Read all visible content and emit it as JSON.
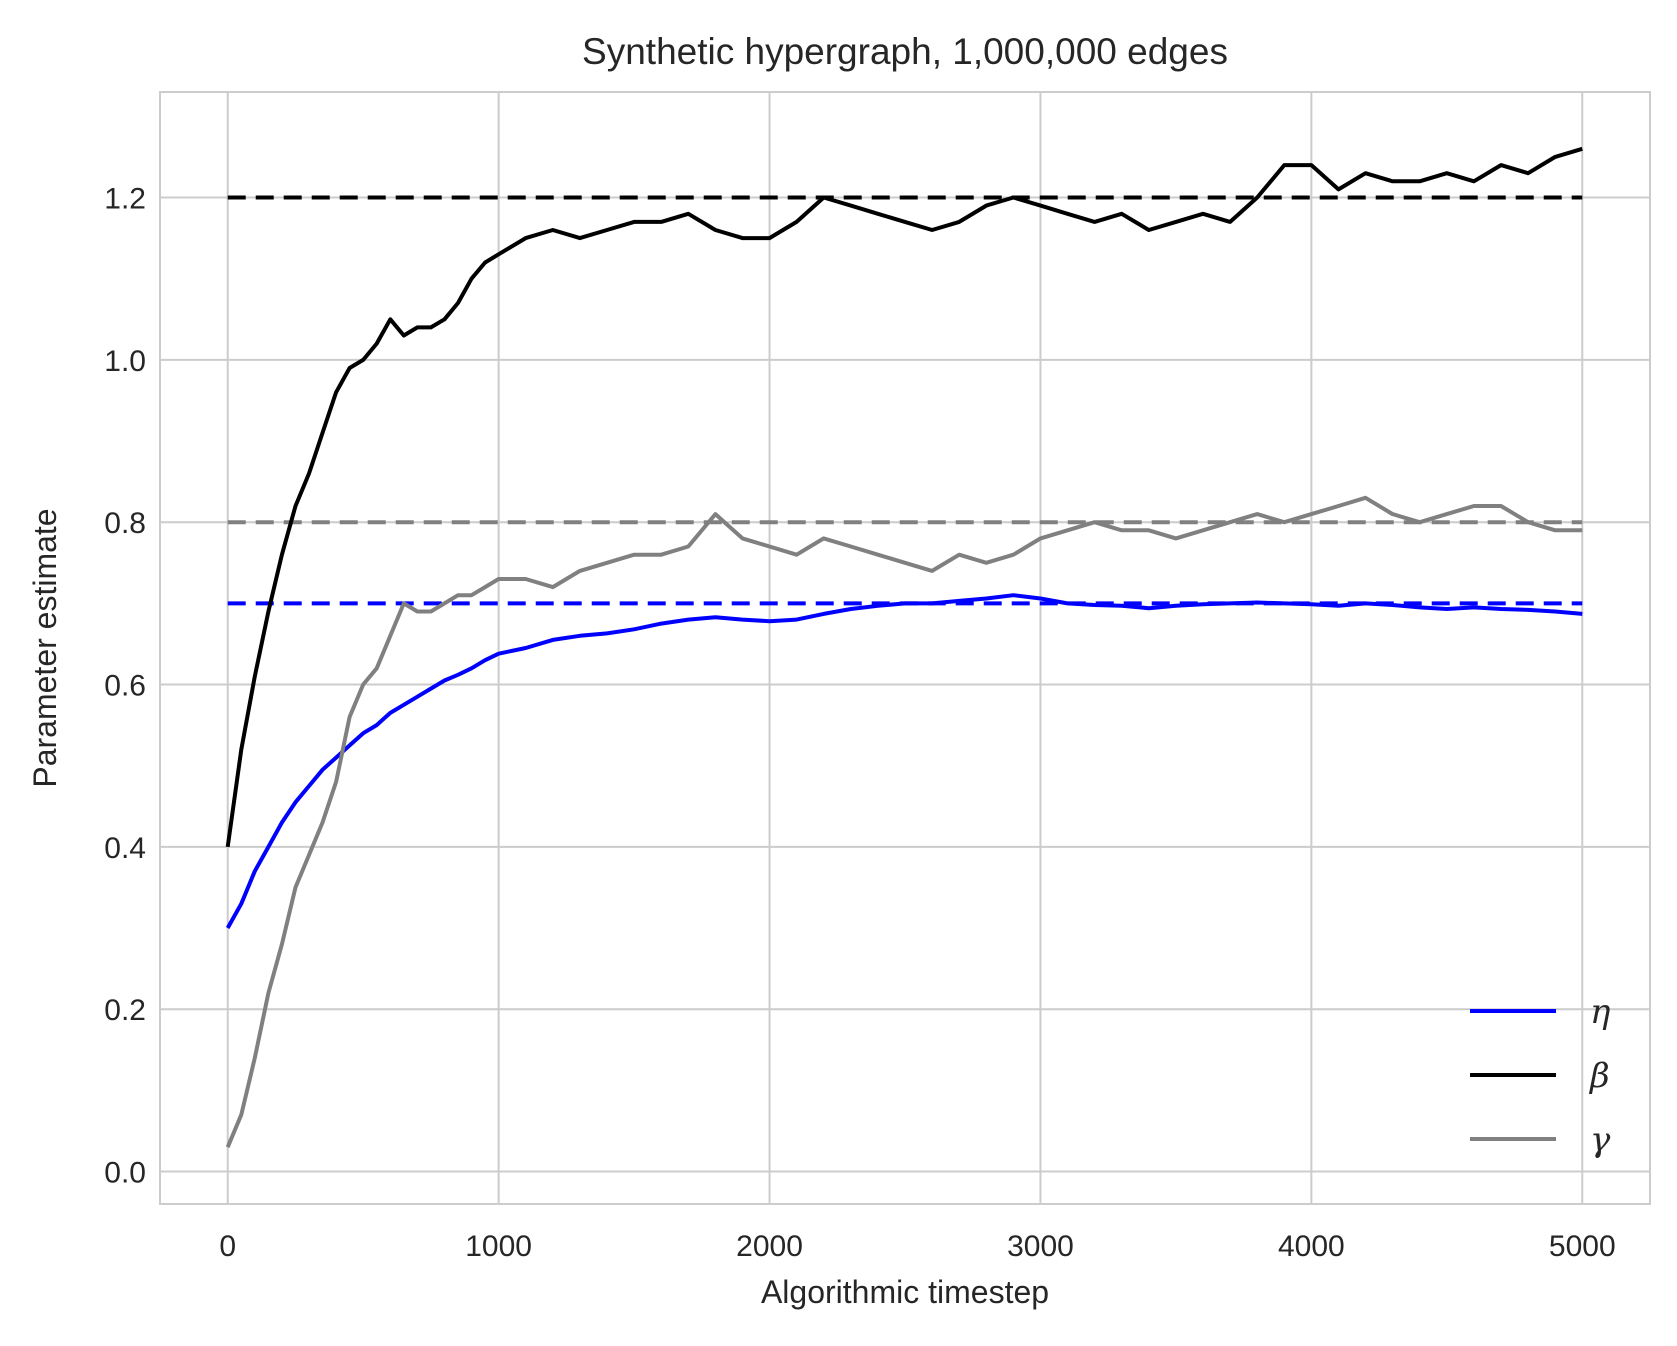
{
  "chart_data": {
    "type": "line",
    "title": "Synthetic hypergraph, 1,000,000 edges",
    "xlabel": "Algorithmic timestep",
    "ylabel": "Parameter estimate",
    "xlim": [
      -250,
      5250
    ],
    "ylim": [
      -0.04,
      1.33
    ],
    "xticks": [
      0,
      1000,
      2000,
      3000,
      4000,
      5000
    ],
    "xtick_labels": [
      "0",
      "1000",
      "2000",
      "3000",
      "4000",
      "5000"
    ],
    "yticks": [
      0.0,
      0.2,
      0.4,
      0.6,
      0.8,
      1.0,
      1.2
    ],
    "ytick_labels": [
      "0.0",
      "0.2",
      "0.4",
      "0.6",
      "0.8",
      "1.0",
      "1.2"
    ],
    "grid": true,
    "legend_position": "lower-right",
    "series": [
      {
        "name": "η",
        "color": "#0000ff",
        "style": "solid",
        "x": [
          0,
          50,
          100,
          150,
          200,
          250,
          300,
          350,
          400,
          450,
          500,
          550,
          600,
          650,
          700,
          750,
          800,
          850,
          900,
          950,
          1000,
          1100,
          1200,
          1300,
          1400,
          1500,
          1600,
          1700,
          1800,
          1900,
          2000,
          2100,
          2200,
          2300,
          2400,
          2500,
          2600,
          2700,
          2800,
          2900,
          3000,
          3100,
          3200,
          3300,
          3400,
          3500,
          3600,
          3700,
          3800,
          3900,
          4000,
          4100,
          4200,
          4300,
          4400,
          4500,
          4600,
          4700,
          4800,
          4900,
          5000
        ],
        "values": [
          0.3,
          0.33,
          0.37,
          0.4,
          0.43,
          0.455,
          0.475,
          0.495,
          0.51,
          0.525,
          0.54,
          0.55,
          0.565,
          0.575,
          0.585,
          0.595,
          0.605,
          0.612,
          0.62,
          0.63,
          0.638,
          0.645,
          0.655,
          0.66,
          0.663,
          0.668,
          0.675,
          0.68,
          0.683,
          0.68,
          0.678,
          0.68,
          0.687,
          0.693,
          0.697,
          0.7,
          0.7,
          0.703,
          0.706,
          0.71,
          0.706,
          0.7,
          0.698,
          0.697,
          0.694,
          0.697,
          0.699,
          0.7,
          0.701,
          0.7,
          0.699,
          0.697,
          0.7,
          0.698,
          0.695,
          0.693,
          0.695,
          0.693,
          0.692,
          0.69,
          0.687
        ]
      },
      {
        "name": "β",
        "color": "#000000",
        "style": "solid",
        "x": [
          0,
          50,
          100,
          150,
          200,
          250,
          300,
          350,
          400,
          450,
          500,
          550,
          600,
          650,
          700,
          750,
          800,
          850,
          900,
          950,
          1000,
          1100,
          1200,
          1300,
          1400,
          1500,
          1600,
          1700,
          1800,
          1900,
          2000,
          2100,
          2200,
          2300,
          2400,
          2500,
          2600,
          2700,
          2800,
          2900,
          3000,
          3100,
          3200,
          3300,
          3400,
          3500,
          3600,
          3700,
          3800,
          3900,
          4000,
          4100,
          4200,
          4300,
          4400,
          4500,
          4600,
          4700,
          4800,
          4900,
          5000
        ],
        "values": [
          0.4,
          0.52,
          0.61,
          0.69,
          0.76,
          0.82,
          0.86,
          0.91,
          0.96,
          0.99,
          1.0,
          1.02,
          1.05,
          1.03,
          1.04,
          1.04,
          1.05,
          1.07,
          1.1,
          1.12,
          1.13,
          1.15,
          1.16,
          1.15,
          1.16,
          1.17,
          1.17,
          1.18,
          1.16,
          1.15,
          1.15,
          1.17,
          1.2,
          1.19,
          1.18,
          1.17,
          1.16,
          1.17,
          1.19,
          1.2,
          1.19,
          1.18,
          1.17,
          1.18,
          1.16,
          1.17,
          1.18,
          1.17,
          1.2,
          1.24,
          1.24,
          1.21,
          1.23,
          1.22,
          1.22,
          1.23,
          1.22,
          1.24,
          1.23,
          1.25,
          1.26
        ]
      },
      {
        "name": "γ",
        "color": "#808080",
        "style": "solid",
        "x": [
          0,
          50,
          100,
          150,
          200,
          250,
          300,
          350,
          400,
          450,
          500,
          550,
          600,
          650,
          700,
          750,
          800,
          850,
          900,
          950,
          1000,
          1100,
          1200,
          1300,
          1400,
          1500,
          1600,
          1700,
          1800,
          1900,
          2000,
          2100,
          2200,
          2300,
          2400,
          2500,
          2600,
          2700,
          2800,
          2900,
          3000,
          3100,
          3200,
          3300,
          3400,
          3500,
          3600,
          3700,
          3800,
          3900,
          4000,
          4100,
          4200,
          4300,
          4400,
          4500,
          4600,
          4700,
          4800,
          4900,
          5000
        ],
        "values": [
          0.03,
          0.07,
          0.14,
          0.22,
          0.28,
          0.35,
          0.39,
          0.43,
          0.48,
          0.56,
          0.6,
          0.62,
          0.66,
          0.7,
          0.69,
          0.69,
          0.7,
          0.71,
          0.71,
          0.72,
          0.73,
          0.73,
          0.72,
          0.74,
          0.75,
          0.76,
          0.76,
          0.77,
          0.81,
          0.78,
          0.77,
          0.76,
          0.78,
          0.77,
          0.76,
          0.75,
          0.74,
          0.76,
          0.75,
          0.76,
          0.78,
          0.79,
          0.8,
          0.79,
          0.79,
          0.78,
          0.79,
          0.8,
          0.81,
          0.8,
          0.81,
          0.82,
          0.83,
          0.81,
          0.8,
          0.81,
          0.82,
          0.82,
          0.8,
          0.79,
          0.79
        ]
      }
    ],
    "reference_lines": [
      {
        "y": 0.7,
        "color": "#0000ff",
        "style": "dashed"
      },
      {
        "y": 1.2,
        "color": "#000000",
        "style": "dashed"
      },
      {
        "y": 0.8,
        "color": "#808080",
        "style": "dashed"
      }
    ]
  }
}
